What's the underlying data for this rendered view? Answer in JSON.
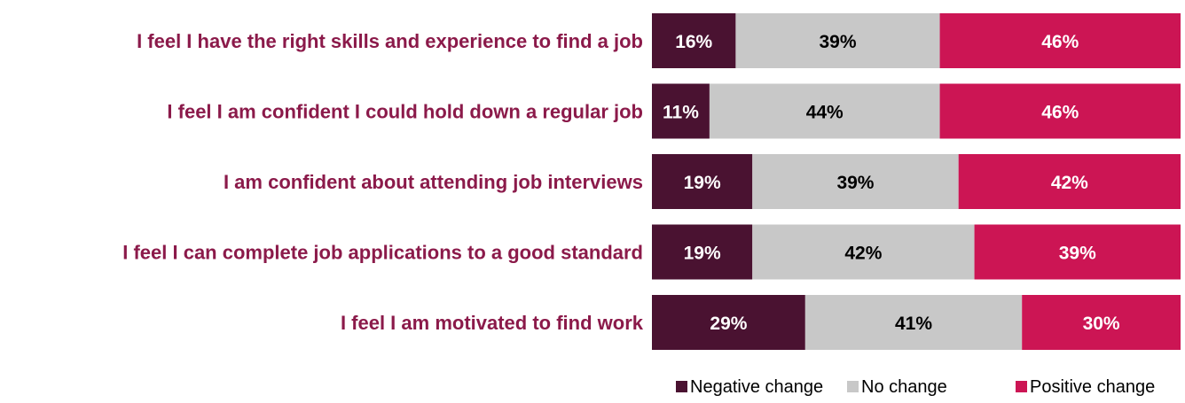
{
  "chart_data": {
    "type": "bar",
    "orientation": "horizontal",
    "stacked": true,
    "percent": true,
    "categories": [
      "I feel I have the right skills and experience to find a job",
      "I feel I am confident I could hold down a regular job",
      "I am confident about attending job interviews",
      "I feel I can complete job applications to a good standard",
      "I feel I am motivated to find work"
    ],
    "series": [
      {
        "name": "Negative change",
        "color": "#4a1231",
        "label_color": "#ffffff",
        "values": [
          16,
          11,
          19,
          19,
          29
        ]
      },
      {
        "name": "No change",
        "color": "#c8c8c8",
        "label_color": "#000000",
        "values": [
          39,
          44,
          39,
          42,
          41
        ]
      },
      {
        "name": "Positive change",
        "color": "#cc1554",
        "label_color": "#ffffff",
        "values": [
          46,
          46,
          42,
          39,
          30
        ]
      }
    ],
    "label_color": "#8b1a4a",
    "legend_position": "bottom-right",
    "grid": false
  }
}
